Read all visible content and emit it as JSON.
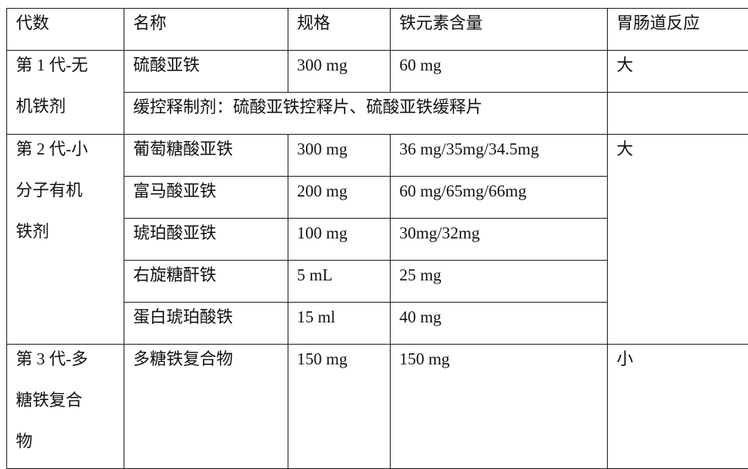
{
  "headers": [
    "代数",
    "名称",
    "规格",
    "铁元素含量",
    "胃肠道反应"
  ],
  "gen1": {
    "generation_lines": [
      "第 1 代-无",
      "机铁剂"
    ],
    "row": {
      "name": "硫酸亚铁",
      "spec": "300 mg",
      "iron": "60 mg",
      "gi": "大"
    },
    "extended_release": "缓控释制剂：硫酸亚铁控释片、硫酸亚铁缓释片"
  },
  "gen2": {
    "generation_lines": [
      "第 2 代-小",
      "分子有机",
      "铁剂"
    ],
    "gi": "大",
    "rows": [
      {
        "name": "葡萄糖酸亚铁",
        "spec": "300 mg",
        "iron": "36 mg/35mg/34.5mg"
      },
      {
        "name": "富马酸亚铁",
        "spec": "200 mg",
        "iron": "60 mg/65mg/66mg"
      },
      {
        "name": "琥珀酸亚铁",
        "spec": "100 mg",
        "iron": "30mg/32mg"
      },
      {
        "name": "右旋糖酐铁",
        "spec": "5 mL",
        "iron": "25 mg"
      },
      {
        "name": "蛋白琥珀酸铁",
        "spec": "15 ml",
        "iron": "40 mg"
      }
    ]
  },
  "gen3": {
    "generation_lines": [
      "第 3 代-多",
      "糖铁复合",
      "物"
    ],
    "row": {
      "name": "多糖铁复合物",
      "spec": "150 mg",
      "iron": "150 mg",
      "gi": "小"
    }
  }
}
